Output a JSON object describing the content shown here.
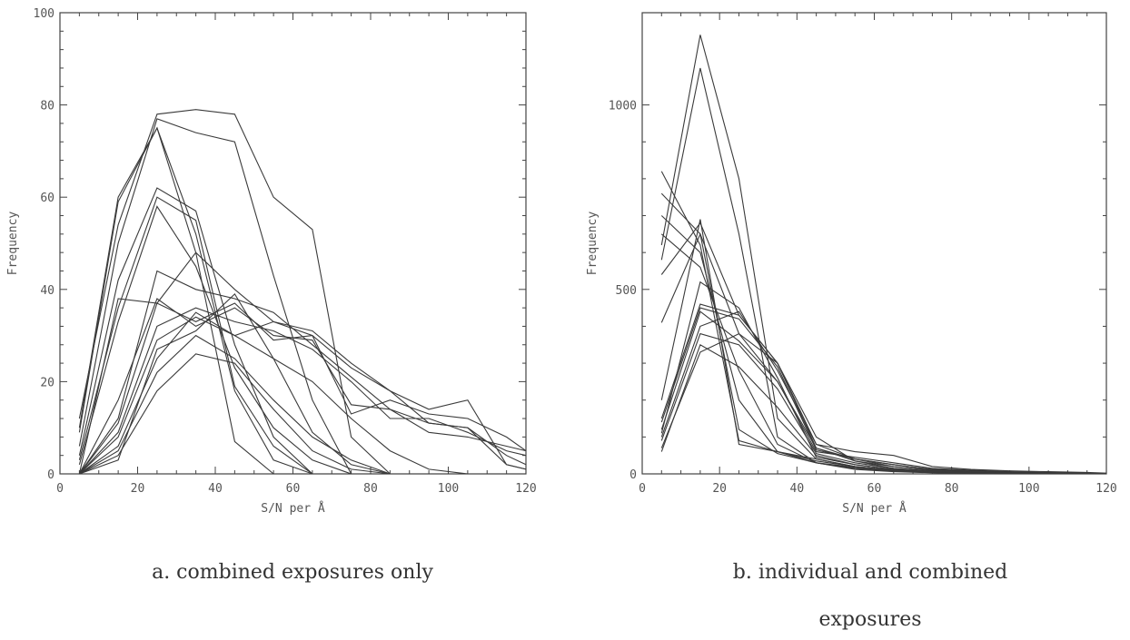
{
  "chart_data": [
    {
      "type": "line",
      "caption": "a. combined exposures only",
      "xlabel": "S/N per Å",
      "ylabel": "Frequency",
      "xlim": [
        0,
        120
      ],
      "ylim": [
        0,
        100
      ],
      "xticks": [
        0,
        20,
        40,
        60,
        80,
        100,
        120
      ],
      "yticks": [
        0,
        20,
        40,
        60,
        80,
        100
      ],
      "x": [
        5,
        15,
        25,
        35,
        45,
        55,
        65,
        75,
        85,
        95,
        105,
        115,
        120
      ],
      "series": [
        {
          "values": [
            10,
            60,
            75,
            48,
            7,
            0,
            0,
            0,
            0,
            0,
            0,
            0,
            0
          ]
        },
        {
          "values": [
            9,
            59,
            75,
            52,
            18,
            3,
            0,
            0,
            0,
            0,
            0,
            0,
            0
          ]
        },
        {
          "values": [
            12,
            54,
            78,
            79,
            78,
            60,
            53,
            8,
            0,
            0,
            0,
            0,
            0
          ]
        },
        {
          "values": [
            6,
            50,
            77,
            74,
            72,
            43,
            16,
            0,
            0,
            0,
            0,
            0,
            0
          ]
        },
        {
          "values": [
            4,
            42,
            62,
            57,
            28,
            8,
            0,
            0,
            0,
            0,
            0,
            0,
            0
          ]
        },
        {
          "values": [
            3,
            36,
            60,
            55,
            19,
            6,
            0,
            0,
            0,
            0,
            0,
            0,
            0
          ]
        },
        {
          "values": [
            2,
            33,
            58,
            45,
            23,
            10,
            3,
            0,
            0,
            0,
            0,
            0,
            0
          ]
        },
        {
          "values": [
            0,
            38,
            37,
            48,
            40,
            33,
            30,
            13,
            16,
            13,
            12,
            8,
            5
          ]
        },
        {
          "values": [
            0,
            16,
            38,
            32,
            36,
            30,
            29,
            15,
            14,
            11,
            10,
            4,
            2
          ]
        },
        {
          "values": [
            0,
            12,
            44,
            40,
            38,
            35,
            28,
            21,
            14,
            9,
            8,
            6,
            5
          ]
        },
        {
          "values": [
            0,
            11,
            37,
            33,
            37,
            29,
            30,
            23,
            18,
            14,
            16,
            2,
            1
          ]
        },
        {
          "values": [
            0,
            9,
            32,
            36,
            33,
            31,
            27,
            20,
            12,
            12,
            9,
            5,
            4
          ]
        },
        {
          "values": [
            0,
            8,
            29,
            34,
            30,
            33,
            31,
            24,
            18,
            11,
            10,
            2,
            1
          ]
        },
        {
          "values": [
            0,
            6,
            25,
            35,
            30,
            25,
            20,
            12,
            5,
            1,
            0,
            0,
            0
          ]
        },
        {
          "values": [
            0,
            5,
            22,
            30,
            25,
            16,
            8,
            3,
            0,
            0,
            0,
            0,
            0
          ]
        },
        {
          "values": [
            0,
            4,
            18,
            26,
            24,
            14,
            5,
            1,
            0,
            0,
            0,
            0,
            0
          ]
        },
        {
          "values": [
            0,
            3,
            27,
            31,
            39,
            25,
            9,
            2,
            0,
            0,
            0,
            0,
            0
          ]
        }
      ]
    },
    {
      "type": "line",
      "caption": "b. individual and combined exposures",
      "caption_line1": "b. individual and combined",
      "caption_line2": "exposures",
      "xlabel": "S/N per Å",
      "ylabel": "Frequency",
      "xlim": [
        0,
        120
      ],
      "ylim": [
        0,
        1250
      ],
      "xticks": [
        0,
        20,
        40,
        60,
        80,
        100,
        120
      ],
      "yticks": [
        0,
        500,
        1000
      ],
      "x": [
        5,
        15,
        25,
        35,
        45,
        55,
        65,
        75,
        85,
        95,
        105,
        115,
        120
      ],
      "series": [
        {
          "values": [
            620,
            1190,
            800,
            150,
            40,
            20,
            10,
            5,
            2,
            1,
            0,
            0,
            0
          ]
        },
        {
          "values": [
            580,
            1100,
            650,
            100,
            30,
            15,
            8,
            4,
            2,
            1,
            0,
            0,
            0
          ]
        },
        {
          "values": [
            820,
            620,
            90,
            60,
            40,
            20,
            10,
            6,
            3,
            2,
            1,
            0,
            0
          ]
        },
        {
          "values": [
            760,
            650,
            120,
            55,
            30,
            18,
            10,
            6,
            3,
            2,
            1,
            0,
            0
          ]
        },
        {
          "values": [
            700,
            600,
            200,
            60,
            30,
            15,
            8,
            4,
            2,
            1,
            0,
            0,
            0
          ]
        },
        {
          "values": [
            650,
            560,
            280,
            80,
            30,
            12,
            6,
            3,
            1,
            0,
            0,
            0,
            0
          ]
        },
        {
          "values": [
            540,
            680,
            430,
            300,
            80,
            40,
            20,
            10,
            5,
            3,
            1,
            0,
            0
          ]
        },
        {
          "values": [
            410,
            650,
            380,
            250,
            70,
            40,
            25,
            12,
            8,
            5,
            3,
            2,
            1
          ]
        },
        {
          "values": [
            200,
            690,
            80,
            60,
            35,
            20,
            10,
            5,
            2,
            1,
            0,
            0,
            0
          ]
        },
        {
          "values": [
            150,
            460,
            430,
            300,
            70,
            35,
            20,
            10,
            6,
            4,
            2,
            1,
            1
          ]
        },
        {
          "values": [
            140,
            450,
            420,
            290,
            65,
            40,
            25,
            12,
            8,
            5,
            3,
            2,
            1
          ]
        },
        {
          "values": [
            120,
            440,
            360,
            250,
            60,
            45,
            30,
            15,
            10,
            6,
            4,
            2,
            1
          ]
        },
        {
          "values": [
            100,
            400,
            440,
            280,
            80,
            60,
            50,
            20,
            12,
            8,
            6,
            4,
            2
          ]
        },
        {
          "values": [
            90,
            380,
            350,
            230,
            55,
            30,
            15,
            8,
            4,
            2,
            1,
            0,
            0
          ]
        },
        {
          "values": [
            70,
            330,
            380,
            300,
            100,
            35,
            15,
            5,
            2,
            1,
            0,
            0,
            0
          ]
        },
        {
          "values": [
            60,
            350,
            290,
            180,
            50,
            25,
            12,
            6,
            3,
            2,
            1,
            0,
            0
          ]
        },
        {
          "values": [
            110,
            520,
            450,
            260,
            45,
            25,
            12,
            6,
            3,
            1,
            0,
            0,
            0
          ]
        }
      ]
    }
  ]
}
